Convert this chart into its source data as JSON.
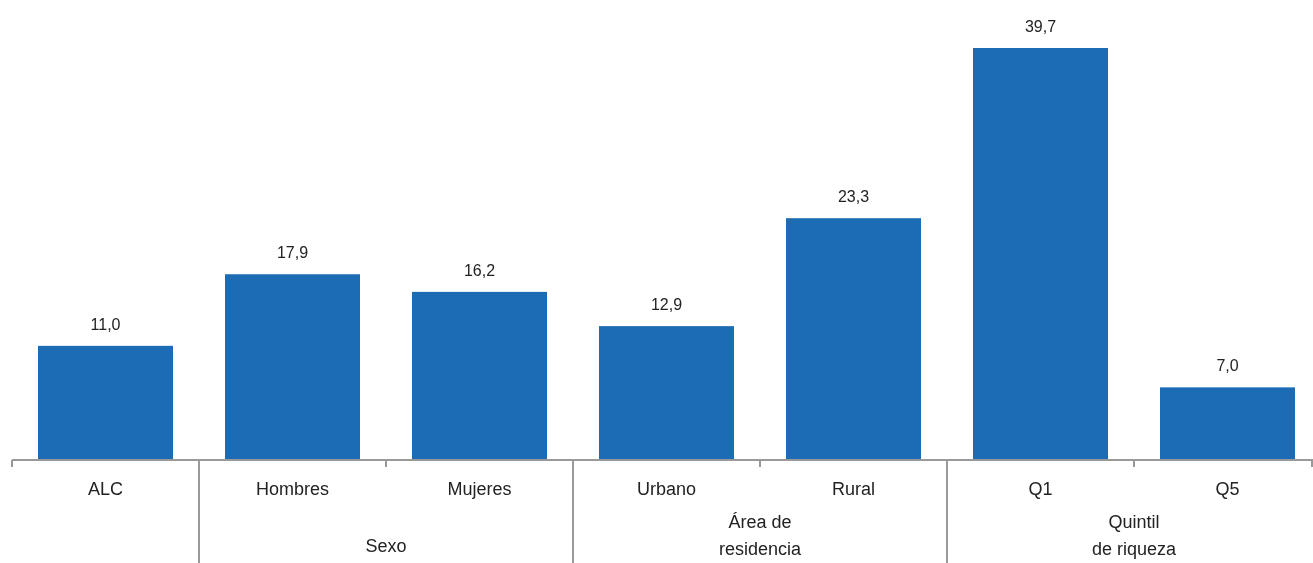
{
  "chart_data": {
    "type": "bar",
    "categories": [
      "ALC",
      "Hombres",
      "Mujeres",
      "Urbano",
      "Rural",
      "Q1",
      "Q5"
    ],
    "values": [
      11.0,
      17.9,
      16.2,
      12.9,
      23.3,
      39.7,
      7.0
    ],
    "value_labels": [
      "11,0",
      "17,9",
      "16,2",
      "12,9",
      "23,3",
      "39,7",
      "7,0"
    ],
    "color": "#1c6bb5",
    "annotations": [
      "Sexo",
      "Área de\nresidencia",
      "Quintil\nde riqueza"
    ],
    "tick_labels": "x"
  }
}
